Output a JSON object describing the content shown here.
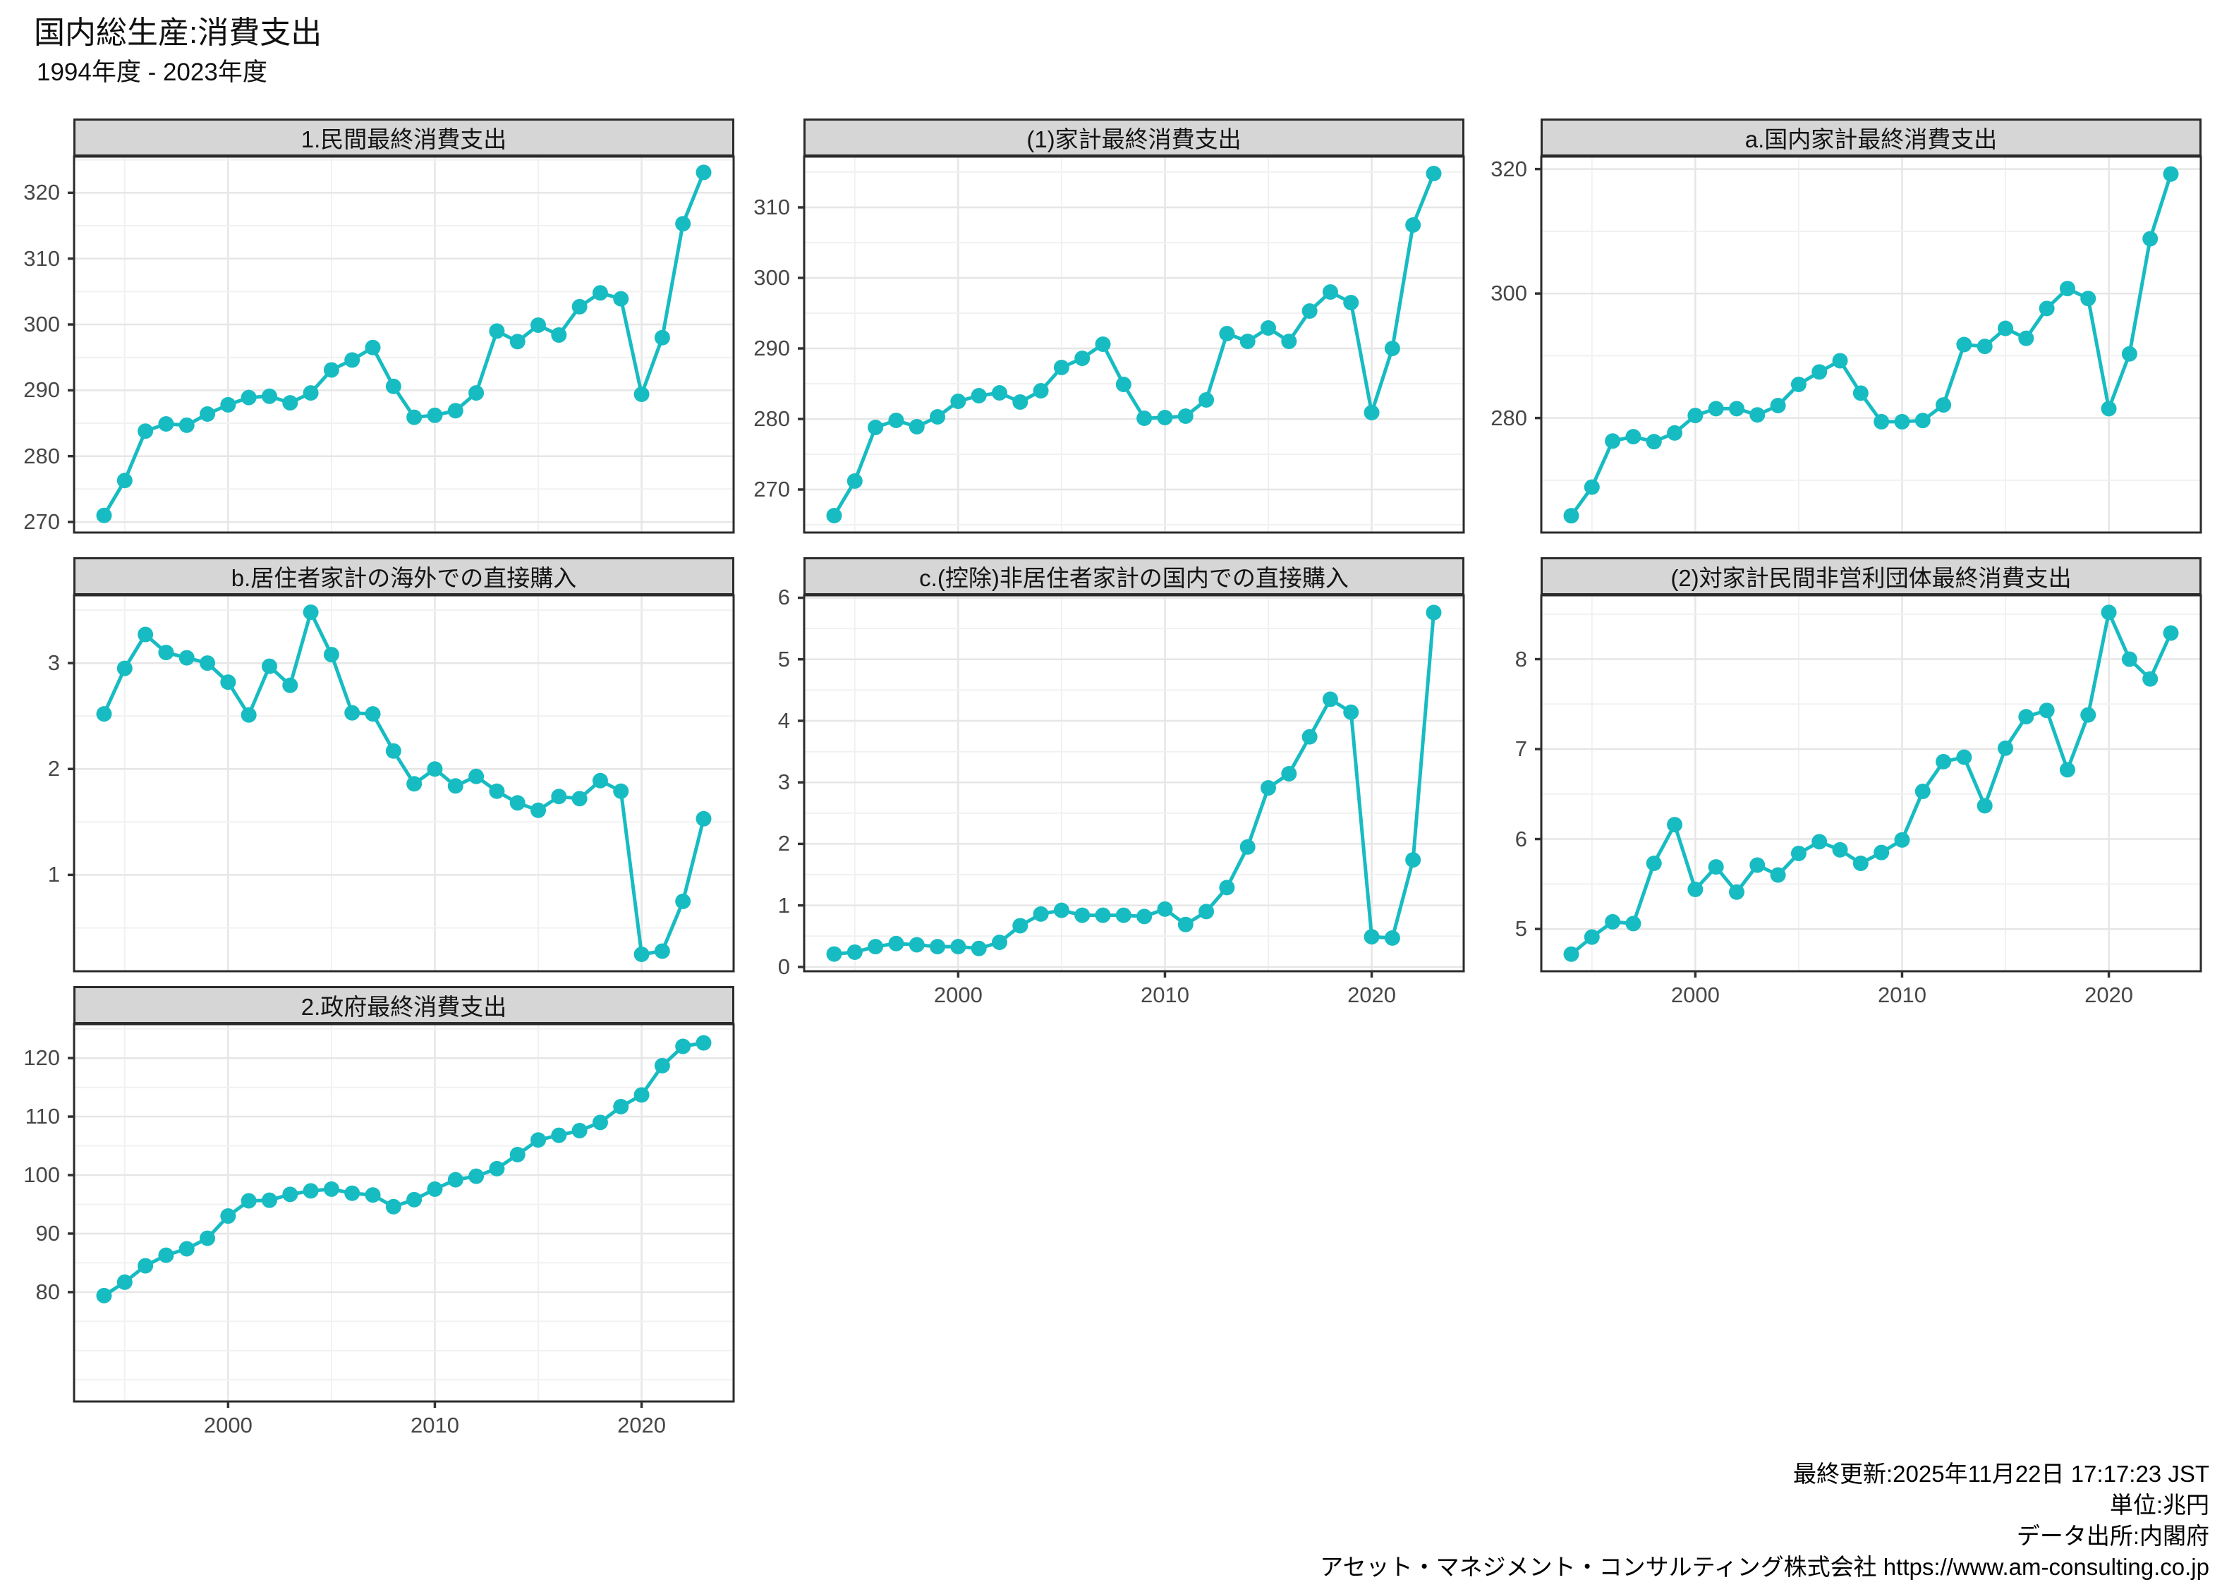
{
  "title": "国内総生産:消費支出",
  "subtitle": "1994年度 - 2023年度",
  "footer": {
    "last_update": "最終更新:2025年11月22日 17:17:23 JST",
    "unit": "単位:兆円",
    "source": "データ出所:内閣府",
    "company": "アセット・マネジメント・コンサルティング株式会社 https://www.am-consulting.co.jp"
  },
  "colors": {
    "series": "#17bcc2",
    "strip_bg": "#d6d6d6",
    "panel_border": "#2b2b2b",
    "grid_major": "#e6e6e6",
    "grid_minor": "#f1f1f1",
    "axis_text": "#474747",
    "tick_mark": "#333333"
  },
  "chart_data": {
    "type": "line",
    "x_years": [
      1994,
      1995,
      1996,
      1997,
      1998,
      1999,
      2000,
      2001,
      2002,
      2003,
      2004,
      2005,
      2006,
      2007,
      2008,
      2009,
      2010,
      2011,
      2012,
      2013,
      2014,
      2015,
      2016,
      2017,
      2018,
      2019,
      2020,
      2021,
      2022,
      2023
    ],
    "x_ticks": [
      2000,
      2010,
      2020
    ],
    "x_minor": [
      1995,
      2005,
      2015,
      2025
    ],
    "x_domain": [
      1992.55,
      2024.45
    ],
    "panels": [
      {
        "id": "private-final-consumption",
        "title": "1.民間最終消費支出",
        "col": 0,
        "row": 0,
        "x_labels": false,
        "y_domain": [
          268.4,
          325.5
        ],
        "y_ticks": [
          270,
          280,
          290,
          300,
          310,
          320
        ],
        "y_minor": [
          275,
          285,
          295,
          305,
          315,
          325
        ],
        "values": [
          271.0,
          276.3,
          283.8,
          284.9,
          284.7,
          286.4,
          287.8,
          288.9,
          289.1,
          288.1,
          289.6,
          293.1,
          294.6,
          296.5,
          290.6,
          285.9,
          286.2,
          286.9,
          289.6,
          299.0,
          297.4,
          299.9,
          298.4,
          302.7,
          304.8,
          303.9,
          289.4,
          298.0,
          315.3,
          323.1
        ]
      },
      {
        "id": "household-final-consumption",
        "title": "(1)家計最終消費支出",
        "col": 1,
        "row": 0,
        "x_labels": false,
        "y_domain": [
          263.9,
          317.2
        ],
        "y_ticks": [
          270,
          280,
          290,
          300,
          310
        ],
        "y_minor": [
          265,
          275,
          285,
          295,
          305,
          315
        ],
        "values": [
          266.3,
          271.2,
          278.8,
          279.8,
          278.9,
          280.3,
          282.5,
          283.3,
          283.7,
          282.4,
          284.0,
          287.3,
          288.6,
          290.6,
          284.9,
          280.1,
          280.2,
          280.4,
          282.7,
          292.1,
          291.0,
          292.9,
          291.0,
          295.3,
          298.0,
          296.5,
          280.9,
          290.0,
          307.5,
          314.8
        ]
      },
      {
        "id": "domestic-household-final-consumption",
        "title": "a.国内家計最終消費支出",
        "col": 2,
        "row": 0,
        "x_labels": false,
        "y_domain": [
          261.6,
          322.0
        ],
        "y_ticks": [
          280,
          300,
          320
        ],
        "y_minor": [
          270,
          290,
          310
        ],
        "values": [
          264.3,
          268.9,
          276.3,
          277.0,
          276.2,
          277.6,
          280.4,
          281.5,
          281.5,
          280.5,
          282.0,
          285.4,
          287.4,
          289.2,
          284.0,
          279.4,
          279.4,
          279.6,
          282.1,
          291.8,
          291.5,
          294.4,
          292.8,
          297.6,
          300.8,
          299.2,
          281.5,
          290.3,
          308.8,
          319.2
        ]
      },
      {
        "id": "residents-direct-purchases-abroad",
        "title": "b.居住者家計の海外での直接購入",
        "col": 0,
        "row": 1,
        "x_labels": false,
        "y_domain": [
          0.09,
          3.64
        ],
        "y_ticks": [
          1,
          2,
          3
        ],
        "y_minor": [
          0.5,
          1.5,
          2.5,
          3.5
        ],
        "values": [
          2.52,
          2.95,
          3.27,
          3.1,
          3.05,
          3.0,
          2.82,
          2.51,
          2.97,
          2.79,
          3.48,
          3.08,
          2.53,
          2.52,
          2.17,
          1.86,
          2.0,
          1.84,
          1.93,
          1.79,
          1.68,
          1.61,
          1.74,
          1.72,
          1.89,
          1.79,
          0.25,
          0.28,
          0.75,
          1.53
        ]
      },
      {
        "id": "nonresidents-direct-purchases-domestic",
        "title": "c.(控除)非居住者家計の国内での直接購入",
        "col": 1,
        "row": 1,
        "x_labels": true,
        "y_domain": [
          -0.07,
          6.04
        ],
        "y_ticks": [
          0,
          1,
          2,
          3,
          4,
          5,
          6
        ],
        "y_minor": [
          0.5,
          1.5,
          2.5,
          3.5,
          4.5,
          5.5
        ],
        "values": [
          0.21,
          0.24,
          0.33,
          0.38,
          0.36,
          0.33,
          0.33,
          0.3,
          0.4,
          0.67,
          0.86,
          0.92,
          0.84,
          0.84,
          0.84,
          0.82,
          0.94,
          0.69,
          0.9,
          1.29,
          1.95,
          2.91,
          3.14,
          3.74,
          4.35,
          4.14,
          0.49,
          0.47,
          1.74,
          5.76
        ]
      },
      {
        "id": "npish-final-consumption",
        "title": "(2)対家計民間非営利団体最終消費支出",
        "col": 2,
        "row": 1,
        "x_labels": true,
        "y_domain": [
          4.53,
          8.71
        ],
        "y_ticks": [
          5,
          6,
          7,
          8
        ],
        "y_minor": [
          4.5,
          5.5,
          6.5,
          7.5,
          8.5
        ],
        "values": [
          4.72,
          4.91,
          5.08,
          5.06,
          5.73,
          6.16,
          5.44,
          5.69,
          5.41,
          5.71,
          5.6,
          5.84,
          5.97,
          5.88,
          5.73,
          5.85,
          5.99,
          6.53,
          6.86,
          6.91,
          6.37,
          7.01,
          7.36,
          7.43,
          6.77,
          7.38,
          8.52,
          8.0,
          7.78,
          8.29
        ]
      },
      {
        "id": "government-final-consumption",
        "title": "2.政府最終消費支出",
        "col": 0,
        "row": 2,
        "x_labels": true,
        "y_domain": [
          61.3,
          125.8
        ],
        "y_ticks": [
          80,
          90,
          100,
          110,
          120
        ],
        "y_minor": [
          65,
          70,
          75,
          85,
          95,
          105,
          115,
          125
        ],
        "values": [
          79.4,
          81.7,
          84.5,
          86.3,
          87.4,
          89.2,
          93.0,
          95.6,
          95.7,
          96.7,
          97.3,
          97.6,
          96.9,
          96.6,
          94.6,
          95.8,
          97.6,
          99.2,
          99.8,
          101.1,
          103.5,
          106.0,
          106.8,
          107.6,
          109.0,
          111.7,
          113.7,
          118.7,
          122.0,
          122.6
        ]
      }
    ]
  }
}
